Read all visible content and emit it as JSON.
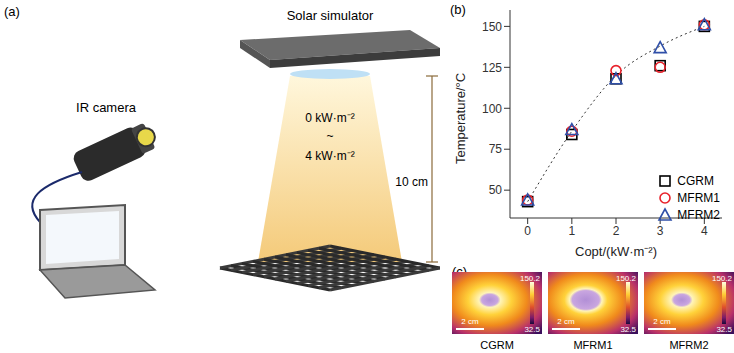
{
  "chart_data": {
    "type": "scatter",
    "panel_label": "(b)",
    "x": [
      0,
      1,
      2,
      3,
      4
    ],
    "series": [
      {
        "name": "CGRM",
        "color": "#000000",
        "marker": "square",
        "values": [
          43,
          84,
          118,
          126,
          150
        ]
      },
      {
        "name": "MFRM1",
        "color": "#e8212a",
        "marker": "circle",
        "values": [
          44,
          86,
          123,
          125,
          151
        ]
      },
      {
        "name": "MFRM2",
        "color": "#2f4fa8",
        "marker": "triangle",
        "values": [
          44,
          87,
          118,
          137,
          151
        ]
      }
    ],
    "fit_line": {
      "values": [
        43,
        86,
        120,
        138,
        150
      ],
      "line_style": "dotted",
      "color": "#333333"
    },
    "x_label": "Copt/(kW·m⁻²)",
    "y_label": "Temperature/°C",
    "xlim": [
      -0.4,
      4.4
    ],
    "xticks": [
      0,
      1,
      2,
      3,
      4
    ],
    "ylim": [
      33,
      160
    ],
    "yticks": [
      50,
      75,
      100,
      125,
      150
    ],
    "legend": "lower right"
  },
  "setup": {
    "panel_label": "(a)",
    "simulator": "Solar simulator",
    "camera": "IR camera",
    "flux_low": "0 kW·m⁻²",
    "flux_sep": "~",
    "flux_high": "4 kW·m⁻²",
    "distance": "10 cm"
  },
  "thermal_images": {
    "panel_label": "(c)",
    "colorbar_range": [
      32.5,
      150.2
    ],
    "scale_bar": "2 cm",
    "labels": [
      "CGRM",
      "MFRM1",
      "MFRM2"
    ]
  }
}
